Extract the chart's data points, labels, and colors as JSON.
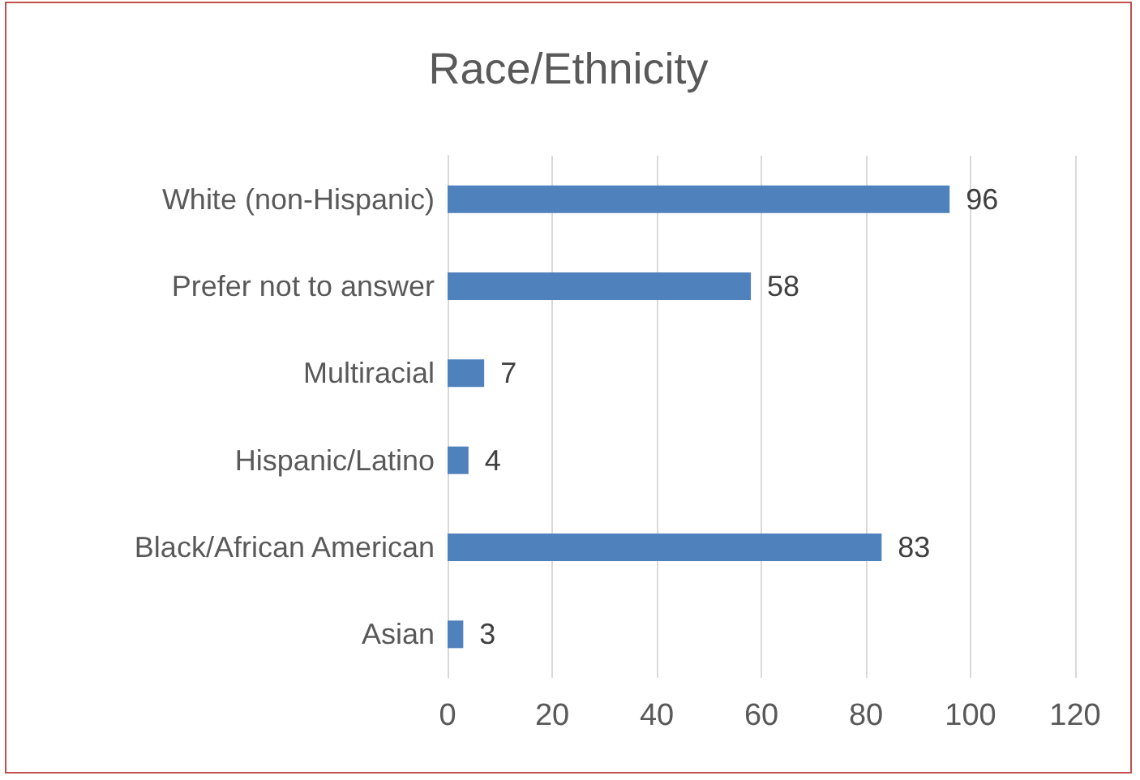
{
  "chart_data": {
    "type": "bar",
    "title": "Race/Ethnicity",
    "orientation": "horizontal",
    "categories": [
      "White (non-Hispanic)",
      "Prefer not to answer",
      "Multiracial",
      "Hispanic/Latino",
      "Black/African American",
      "Asian"
    ],
    "values": [
      96,
      58,
      7,
      4,
      83,
      3
    ],
    "color": "#4f81bd",
    "xlim": [
      0,
      120
    ],
    "xticks": [
      0,
      20,
      40,
      60,
      80,
      100,
      120
    ],
    "grid": "x",
    "data_labels": true
  }
}
